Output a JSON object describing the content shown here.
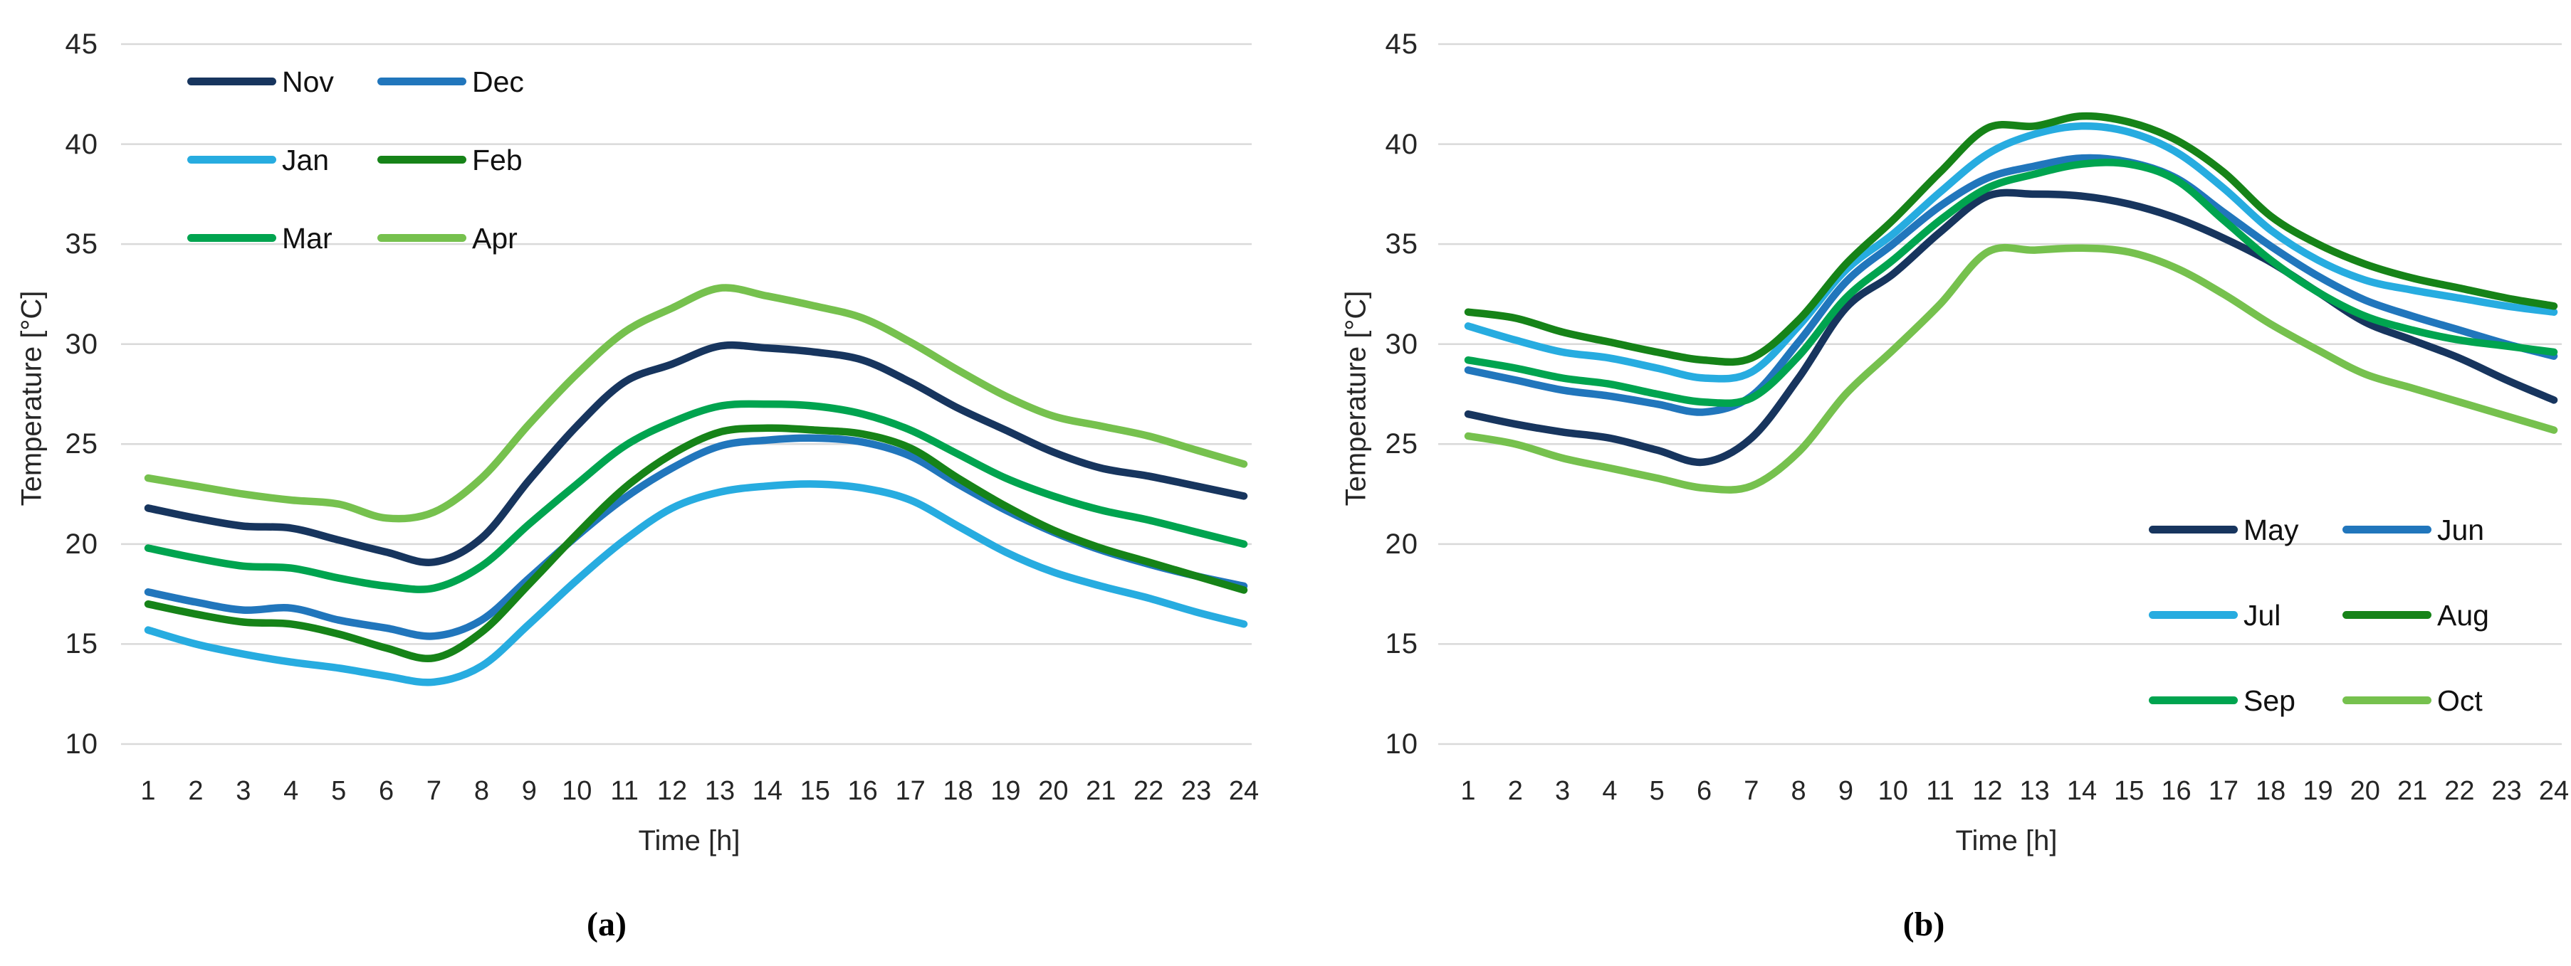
{
  "panels": [
    {
      "caption": "(a)",
      "xlabel": "Time [h]",
      "ylabel": "Temperature [°C]"
    },
    {
      "caption": "(b)",
      "xlabel": "Time [h]",
      "ylabel": "Temperature [°C]"
    }
  ],
  "colors": {
    "grid": "#D9D9D9",
    "tick_text": "#262626",
    "navy": "#17355E",
    "blue": "#2176BC",
    "cyan": "#27ACE0",
    "dark_green": "#168318",
    "emerald": "#00A44F",
    "light_green": "#76C14E"
  },
  "chart_data": [
    {
      "type": "line",
      "title": "",
      "xlabel": "Time [h]",
      "ylabel": "Temperature [°C]",
      "x": [
        1,
        2,
        3,
        4,
        5,
        6,
        7,
        8,
        9,
        10,
        11,
        12,
        13,
        14,
        15,
        16,
        17,
        18,
        19,
        20,
        21,
        22,
        23,
        24
      ],
      "xlim": [
        1,
        24
      ],
      "ylim": [
        10,
        45
      ],
      "yticks": [
        10,
        15,
        20,
        25,
        30,
        35,
        40,
        45
      ],
      "grid": "horizontal-only",
      "legend_position": "top-left",
      "series": [
        {
          "name": "Nov",
          "color": "#17355E",
          "values": [
            21.8,
            21.3,
            20.9,
            20.8,
            20.2,
            19.6,
            19.1,
            20.3,
            23.2,
            25.9,
            28.1,
            29.0,
            29.9,
            29.8,
            29.6,
            29.2,
            28.1,
            26.8,
            25.7,
            24.6,
            23.8,
            23.4,
            22.9,
            22.4
          ]
        },
        {
          "name": "Dec",
          "color": "#2176BC",
          "values": [
            17.6,
            17.1,
            16.7,
            16.8,
            16.2,
            15.8,
            15.4,
            16.2,
            18.3,
            20.4,
            22.3,
            23.8,
            24.9,
            25.2,
            25.3,
            25.1,
            24.4,
            23.0,
            21.7,
            20.6,
            19.7,
            19.0,
            18.4,
            17.9
          ]
        },
        {
          "name": "Jan",
          "color": "#27ACE0",
          "values": [
            15.7,
            15.0,
            14.5,
            14.1,
            13.8,
            13.4,
            13.1,
            13.9,
            16.0,
            18.2,
            20.2,
            21.8,
            22.6,
            22.9,
            23.0,
            22.8,
            22.2,
            20.9,
            19.6,
            18.6,
            17.9,
            17.3,
            16.6,
            16.0
          ]
        },
        {
          "name": "Feb",
          "color": "#168318",
          "values": [
            17.0,
            16.5,
            16.1,
            16.0,
            15.5,
            14.8,
            14.3,
            15.6,
            18.0,
            20.5,
            22.8,
            24.5,
            25.6,
            25.8,
            25.7,
            25.5,
            24.8,
            23.3,
            21.9,
            20.7,
            19.8,
            19.1,
            18.4,
            17.7
          ]
        },
        {
          "name": "Mar",
          "color": "#00A44F",
          "values": [
            19.8,
            19.3,
            18.9,
            18.8,
            18.3,
            17.9,
            17.8,
            18.9,
            21.0,
            23.0,
            24.9,
            26.1,
            26.9,
            27.0,
            26.9,
            26.5,
            25.7,
            24.5,
            23.3,
            22.4,
            21.7,
            21.2,
            20.6,
            20.0
          ]
        },
        {
          "name": "Apr",
          "color": "#76C14E",
          "values": [
            23.3,
            22.9,
            22.5,
            22.2,
            22.0,
            21.3,
            21.6,
            23.3,
            26.0,
            28.5,
            30.6,
            31.8,
            32.8,
            32.4,
            31.9,
            31.3,
            30.1,
            28.7,
            27.4,
            26.4,
            25.9,
            25.4,
            24.7,
            24.0
          ]
        }
      ]
    },
    {
      "type": "line",
      "title": "",
      "xlabel": "Time [h]",
      "ylabel": "Temperature [°C]",
      "x": [
        1,
        2,
        3,
        4,
        5,
        6,
        7,
        8,
        9,
        10,
        11,
        12,
        13,
        14,
        15,
        16,
        17,
        18,
        19,
        20,
        21,
        22,
        23,
        24
      ],
      "xlim": [
        1,
        24
      ],
      "ylim": [
        10,
        45
      ],
      "yticks": [
        10,
        15,
        20,
        25,
        30,
        35,
        40,
        45
      ],
      "grid": "horizontal-only",
      "legend_position": "bottom-right",
      "series": [
        {
          "name": "May",
          "color": "#17355E",
          "values": [
            26.5,
            26.0,
            25.6,
            25.3,
            24.7,
            24.1,
            25.3,
            28.3,
            31.8,
            33.5,
            35.6,
            37.4,
            37.5,
            37.4,
            37.0,
            36.3,
            35.3,
            34.1,
            32.6,
            31.1,
            30.2,
            29.3,
            28.2,
            27.2
          ]
        },
        {
          "name": "Jun",
          "color": "#2176BC",
          "values": [
            28.7,
            28.2,
            27.7,
            27.4,
            27.0,
            26.6,
            27.4,
            30.1,
            33.1,
            35.0,
            36.9,
            38.3,
            38.9,
            39.3,
            39.1,
            38.3,
            36.6,
            34.9,
            33.4,
            32.2,
            31.4,
            30.7,
            30.0,
            29.4
          ]
        },
        {
          "name": "Jul",
          "color": "#27ACE0",
          "values": [
            30.9,
            30.2,
            29.6,
            29.3,
            28.8,
            28.3,
            28.6,
            30.9,
            33.7,
            35.5,
            37.6,
            39.5,
            40.5,
            40.9,
            40.6,
            39.6,
            37.8,
            35.7,
            34.2,
            33.2,
            32.7,
            32.3,
            31.9,
            31.6
          ]
        },
        {
          "name": "Aug",
          "color": "#168318",
          "values": [
            31.6,
            31.3,
            30.6,
            30.1,
            29.6,
            29.2,
            29.3,
            31.2,
            34.0,
            36.2,
            38.6,
            40.8,
            40.9,
            41.4,
            41.1,
            40.2,
            38.6,
            36.4,
            35.0,
            34.0,
            33.3,
            32.8,
            32.3,
            31.9
          ]
        },
        {
          "name": "Sep",
          "color": "#00A44F",
          "values": [
            29.2,
            28.8,
            28.3,
            28.0,
            27.5,
            27.1,
            27.3,
            29.4,
            32.3,
            34.2,
            36.2,
            37.8,
            38.5,
            39.0,
            39.0,
            38.2,
            36.2,
            34.2,
            32.6,
            31.4,
            30.7,
            30.2,
            29.9,
            29.6
          ]
        },
        {
          "name": "Oct",
          "color": "#76C14E",
          "values": [
            25.4,
            25.0,
            24.3,
            23.8,
            23.3,
            22.8,
            22.9,
            24.6,
            27.5,
            29.7,
            32.0,
            34.6,
            34.7,
            34.8,
            34.6,
            33.8,
            32.5,
            31.0,
            29.7,
            28.5,
            27.8,
            27.1,
            26.4,
            25.7
          ]
        }
      ]
    }
  ]
}
